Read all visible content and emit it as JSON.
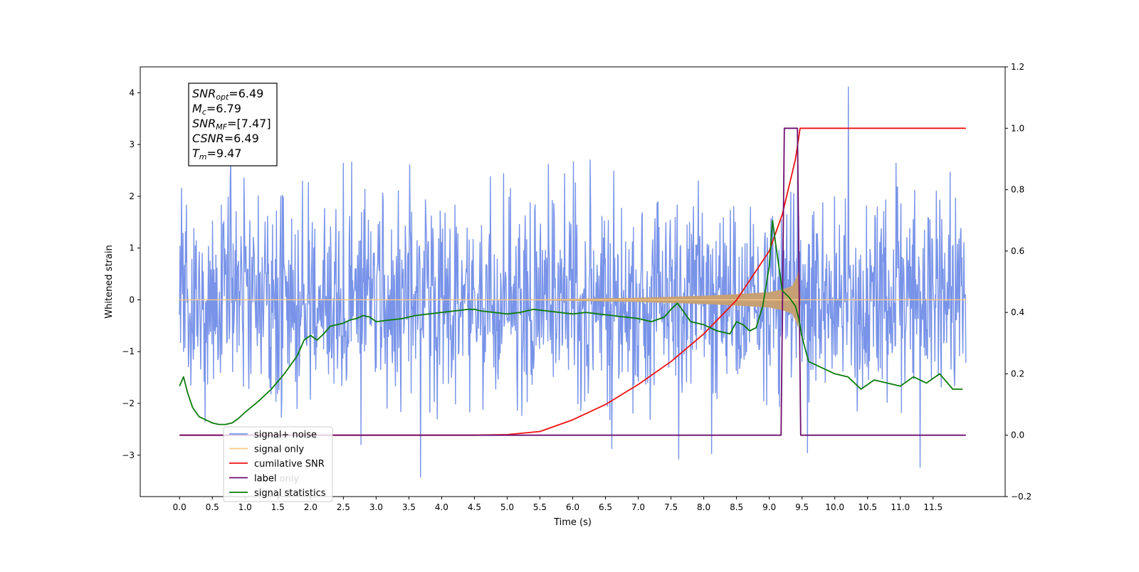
{
  "chart_data": {
    "type": "line",
    "xlabel": "Time (s)",
    "ylabel": "Whitened strain",
    "xlim": [
      -0.6,
      12.6
    ],
    "ylim": [
      -3.8,
      4.5
    ],
    "y2lim": [
      -0.2,
      1.2
    ],
    "x_ticks": [
      0.0,
      0.5,
      1.0,
      1.5,
      2.0,
      2.5,
      3.0,
      3.5,
      4.0,
      4.5,
      5.0,
      5.5,
      6.0,
      6.5,
      7.0,
      7.5,
      8.0,
      8.5,
      9.0,
      9.5,
      10.0,
      10.5,
      11.0,
      11.5
    ],
    "x_tick_labels": [
      "0.0",
      "0.5",
      "1.0",
      "1.5",
      "2.0",
      "2.5",
      "3.0",
      "3.5",
      "4.0",
      "4.5",
      "5.0",
      "5.5",
      "6.0",
      "6.5",
      "7.0",
      "7.5",
      "8.0",
      "8.5",
      "9.0",
      "9.5",
      "10.0",
      "10.5",
      "11.0",
      "11.5"
    ],
    "y_ticks": [
      -3,
      -2,
      -1,
      0,
      1,
      2,
      3,
      4
    ],
    "y_tick_labels": [
      "−3",
      "−2",
      "−1",
      "0",
      "1",
      "2",
      "3",
      "4"
    ],
    "y2_ticks": [
      -0.2,
      0.0,
      0.2,
      0.4,
      0.6,
      0.8,
      1.0,
      1.2
    ],
    "y2_tick_labels": [
      "−0.2",
      "0.0",
      "0.2",
      "0.4",
      "0.6",
      "0.8",
      "1.0",
      "1.2"
    ],
    "grid": false,
    "legend_position": "lower-left",
    "legend": [
      {
        "label": "signal+ noise",
        "color": "#7893e8"
      },
      {
        "label": "signal only",
        "color": "#f9c882"
      },
      {
        "label": "cumilative SNR",
        "color": "#ee1111"
      },
      {
        "label": "label",
        "color": "#6f0d6f"
      },
      {
        "label": "signal statistics",
        "color": "#0b7d0b"
      }
    ],
    "hidden_legend_text": "label only",
    "stats_box": {
      "lines": [
        {
          "sym": "SNR",
          "sub": "opt",
          "rest": "=6.49"
        },
        {
          "sym": "M",
          "sub": "c",
          "rest": "=6.79"
        },
        {
          "sym": "SNR",
          "sub": "MF",
          "rest": "=[7.47]"
        },
        {
          "sym": "CSNR",
          "sub": "",
          "rest": "=6.49"
        },
        {
          "sym": "T",
          "sub": "m",
          "rest": "=9.47"
        }
      ]
    },
    "series": [
      {
        "name": "signal+ noise",
        "axis": "left",
        "color": "#7893e8",
        "x_range": [
          0.0,
          12.0
        ],
        "n_samples": 1600,
        "seed": 7,
        "center": 0.0,
        "typical_range": [
          -2.4,
          2.8
        ],
        "extremes": [
          {
            "x": 10.21,
            "y": 4.12
          },
          {
            "x": 3.68,
            "y": -3.43
          },
          {
            "x": 11.3,
            "y": -3.24
          },
          {
            "x": 7.62,
            "y": -3.08
          },
          {
            "x": 8.12,
            "y": -2.98
          },
          {
            "x": 9.58,
            "y": -2.96
          },
          {
            "x": 6.6,
            "y": -2.88
          },
          {
            "x": 2.77,
            "y": -2.8
          },
          {
            "x": 9.05,
            "y": 1.62
          }
        ]
      },
      {
        "name": "signal only",
        "axis": "left",
        "color": "#f9c882",
        "fill_color": "#c6a074",
        "x": [
          0.0,
          5.0,
          6.0,
          7.0,
          8.0,
          8.5,
          9.0,
          9.2,
          9.35,
          9.42,
          9.45,
          9.47,
          12.0
        ],
        "envelope": [
          0.0,
          0.0,
          0.02,
          0.04,
          0.08,
          0.11,
          0.15,
          0.2,
          0.27,
          0.45,
          0.6,
          0.0,
          0.0
        ]
      },
      {
        "name": "cumilative SNR",
        "axis": "right",
        "color": "#ee1111",
        "x": [
          0.0,
          4.5,
          5.0,
          5.5,
          6.0,
          6.5,
          7.0,
          7.5,
          8.0,
          8.5,
          9.0,
          9.2,
          9.4,
          9.47,
          12.0
        ],
        "y": [
          0.0,
          0.0,
          0.002,
          0.012,
          0.05,
          0.1,
          0.165,
          0.24,
          0.33,
          0.44,
          0.6,
          0.72,
          0.9,
          1.0,
          1.0
        ]
      },
      {
        "name": "label",
        "axis": "right",
        "color": "#6f0d6f",
        "x": [
          0.0,
          9.18,
          9.23,
          9.43,
          9.48,
          12.0
        ],
        "y": [
          0.0,
          0.0,
          1.0,
          1.0,
          0.0,
          0.0
        ]
      },
      {
        "name": "signal statistics",
        "axis": "right",
        "color": "#0b7d0b",
        "x": [
          0.0,
          0.06,
          0.12,
          0.2,
          0.3,
          0.4,
          0.5,
          0.6,
          0.7,
          0.8,
          0.9,
          1.0,
          1.2,
          1.4,
          1.6,
          1.8,
          1.9,
          2.0,
          2.1,
          2.2,
          2.3,
          2.4,
          2.5,
          2.6,
          2.7,
          2.8,
          2.9,
          3.0,
          3.2,
          3.4,
          3.6,
          3.8,
          4.0,
          4.2,
          4.4,
          4.5,
          4.6,
          4.8,
          5.0,
          5.2,
          5.4,
          5.6,
          5.8,
          6.0,
          6.2,
          6.4,
          6.6,
          6.8,
          7.0,
          7.2,
          7.4,
          7.5,
          7.6,
          7.7,
          7.8,
          8.0,
          8.2,
          8.4,
          8.5,
          8.6,
          8.7,
          8.8,
          8.9,
          9.0,
          9.05,
          9.1,
          9.2,
          9.3,
          9.4,
          9.45,
          9.5,
          9.6,
          9.8,
          10.0,
          10.2,
          10.4,
          10.6,
          10.8,
          11.0,
          11.2,
          11.4,
          11.6,
          11.8,
          11.95
        ],
        "y": [
          0.16,
          0.19,
          0.14,
          0.09,
          0.06,
          0.05,
          0.04,
          0.035,
          0.035,
          0.04,
          0.055,
          0.075,
          0.11,
          0.15,
          0.2,
          0.26,
          0.31,
          0.325,
          0.31,
          0.33,
          0.355,
          0.36,
          0.365,
          0.375,
          0.38,
          0.39,
          0.385,
          0.37,
          0.375,
          0.38,
          0.39,
          0.395,
          0.4,
          0.405,
          0.41,
          0.41,
          0.405,
          0.4,
          0.395,
          0.4,
          0.41,
          0.405,
          0.4,
          0.395,
          0.4,
          0.395,
          0.39,
          0.385,
          0.38,
          0.37,
          0.385,
          0.41,
          0.43,
          0.4,
          0.37,
          0.36,
          0.34,
          0.33,
          0.37,
          0.36,
          0.34,
          0.35,
          0.42,
          0.55,
          0.7,
          0.62,
          0.47,
          0.45,
          0.42,
          0.38,
          0.32,
          0.24,
          0.22,
          0.2,
          0.19,
          0.15,
          0.18,
          0.17,
          0.16,
          0.19,
          0.17,
          0.2,
          0.15,
          0.15
        ]
      }
    ]
  }
}
